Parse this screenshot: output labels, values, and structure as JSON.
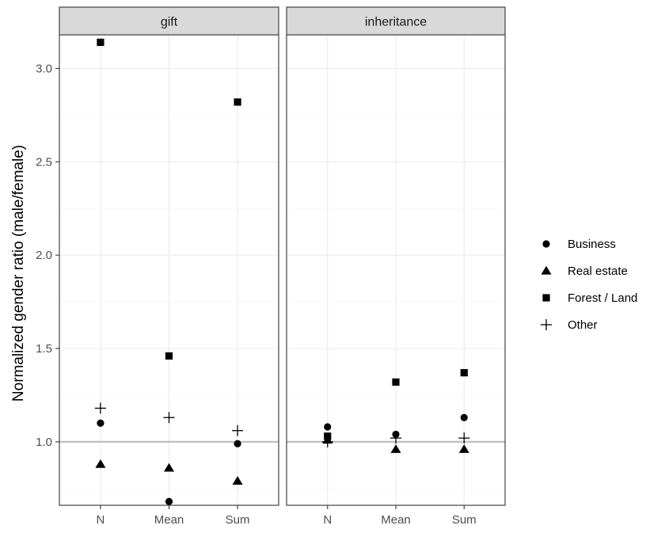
{
  "chart_data": {
    "type": "scatter",
    "ylabel": "Normalized gender ratio (male/female)",
    "xlabel": "",
    "categories": [
      "N",
      "Mean",
      "Sum"
    ],
    "yticks": [
      1.0,
      1.5,
      2.0,
      2.5,
      3.0
    ],
    "ytick_labels": [
      "1.0",
      "1.5",
      "2.0",
      "2.5",
      "3.0"
    ],
    "ylim": [
      0.66,
      3.18
    ],
    "reference_line": 1.0,
    "grid": true,
    "legend_position": "right",
    "facets": [
      {
        "label": "gift",
        "series": [
          {
            "name": "Business",
            "shape": "circle",
            "values": [
              1.1,
              0.68,
              0.99
            ]
          },
          {
            "name": "Real estate",
            "shape": "triangle",
            "values": [
              0.88,
              0.86,
              0.79
            ]
          },
          {
            "name": "Forest / Land",
            "shape": "square",
            "values": [
              3.14,
              1.46,
              2.82
            ]
          },
          {
            "name": "Other",
            "shape": "plus",
            "values": [
              1.18,
              1.13,
              1.06
            ]
          }
        ]
      },
      {
        "label": "inheritance",
        "series": [
          {
            "name": "Business",
            "shape": "circle",
            "values": [
              1.08,
              1.04,
              1.13
            ]
          },
          {
            "name": "Real estate",
            "shape": "triangle",
            "values": [
              1.01,
              0.96,
              0.96
            ]
          },
          {
            "name": "Forest / Land",
            "shape": "square",
            "values": [
              1.03,
              1.32,
              1.37
            ]
          },
          {
            "name": "Other",
            "shape": "plus",
            "values": [
              1.0,
              1.02,
              1.02
            ]
          }
        ]
      }
    ],
    "legend": [
      {
        "name": "Business",
        "shape": "circle"
      },
      {
        "name": "Real estate",
        "shape": "triangle"
      },
      {
        "name": "Forest / Land",
        "shape": "square"
      },
      {
        "name": "Other",
        "shape": "plus"
      }
    ],
    "colors": {
      "strip_fill": "#d9d9d9",
      "panel_border": "#333333",
      "grid_major": "#ebebeb",
      "grid_minor": "#f5f5f5",
      "reference_line": "#bfbfbf",
      "points": "#000000",
      "tick_text": "#4d4d4d"
    }
  }
}
